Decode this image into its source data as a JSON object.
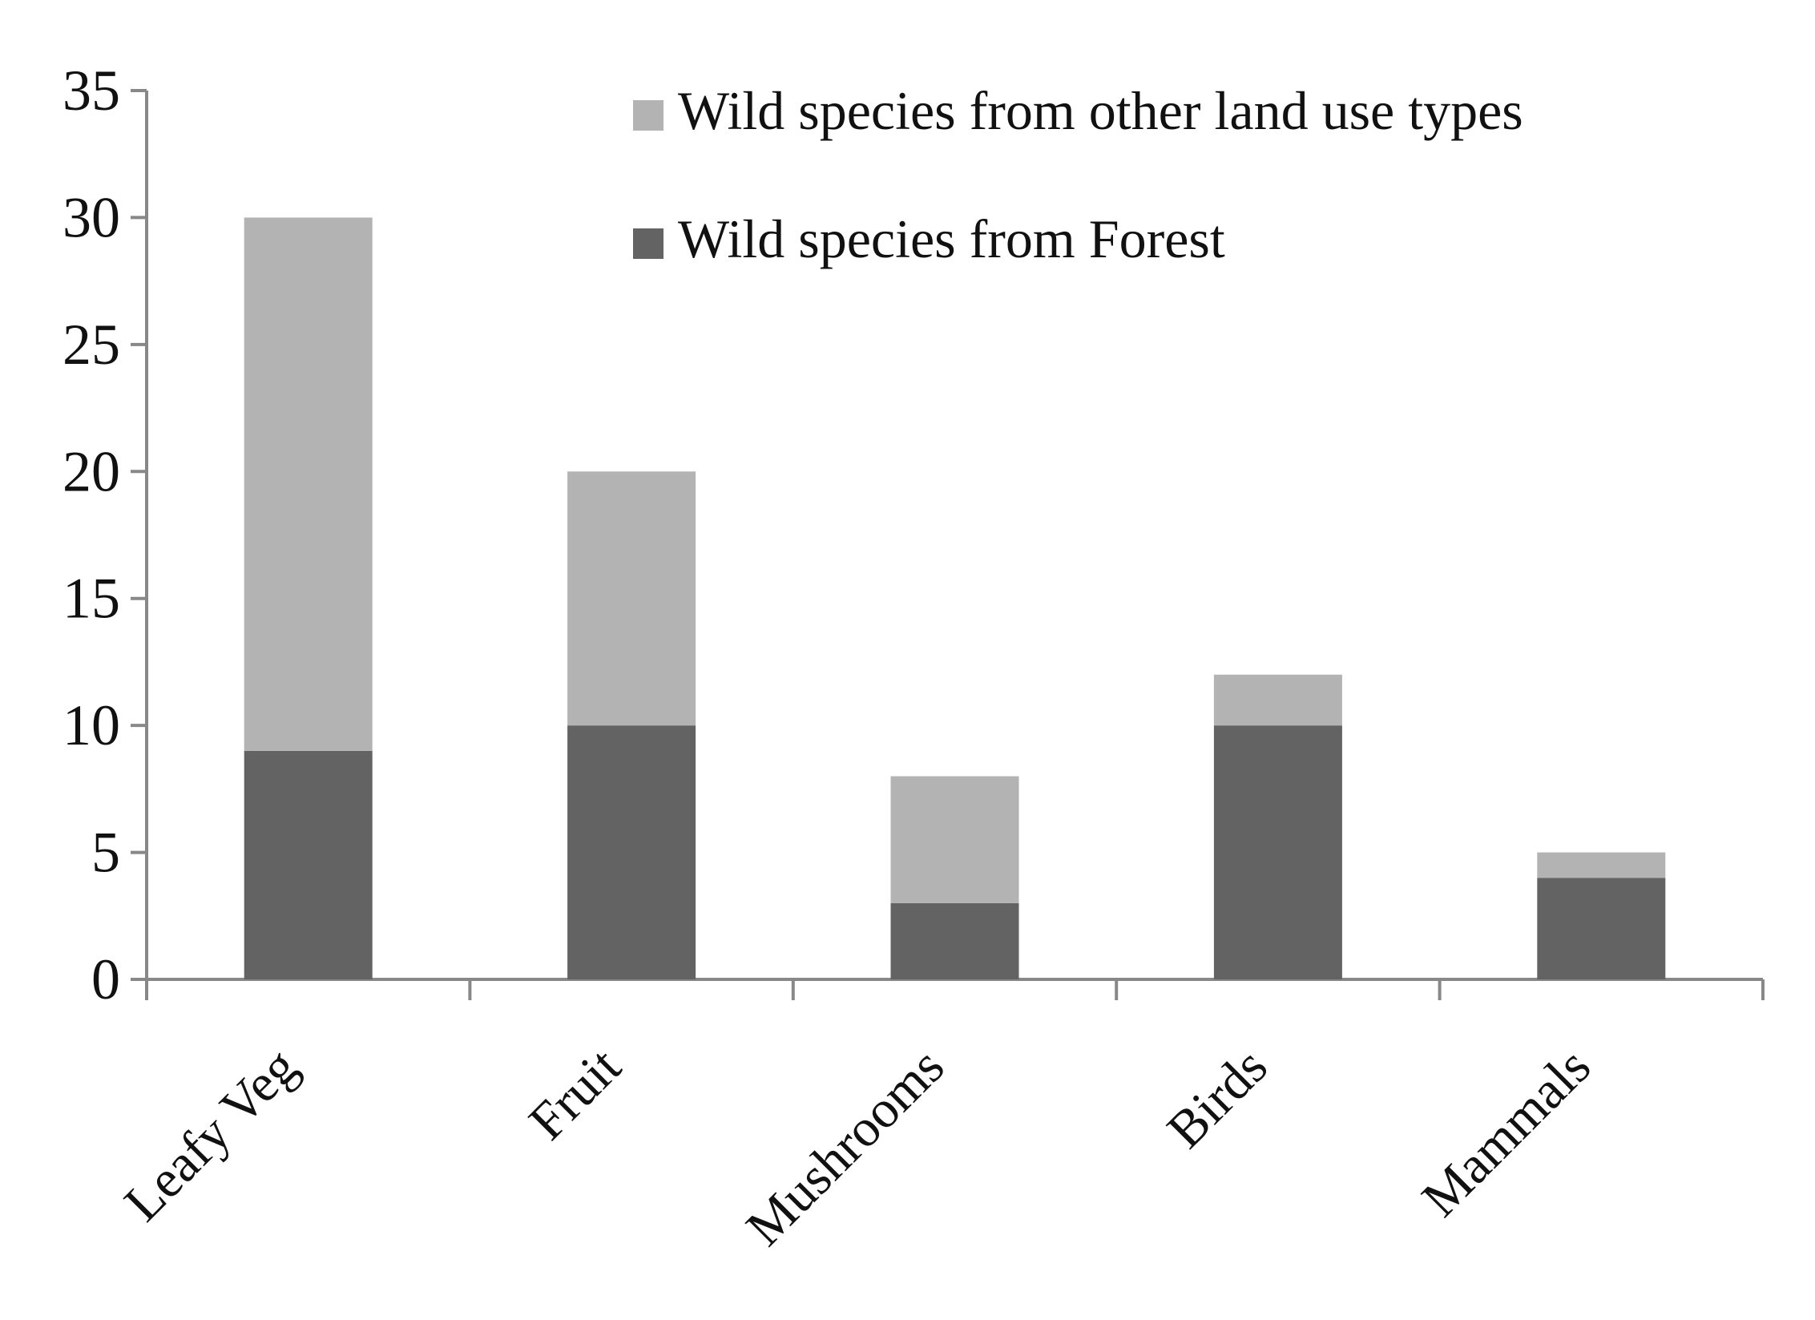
{
  "chart_data": {
    "type": "bar",
    "stacked": true,
    "title": "",
    "xlabel": "",
    "ylabel": "",
    "categories": [
      "Leafy Veg",
      "Fruit",
      "Mushrooms",
      "Birds",
      "Mammals"
    ],
    "series": [
      {
        "name": "Wild species from Forest",
        "values": [
          9,
          10,
          3,
          10,
          4
        ],
        "color": "#636363"
      },
      {
        "name": "Wild species from other land use types",
        "values": [
          21,
          10,
          5,
          2,
          1
        ],
        "color": "#b3b3b3"
      }
    ],
    "ylim": [
      0,
      35
    ],
    "yticks": [
      0,
      5,
      10,
      15,
      20,
      25,
      30,
      35
    ],
    "grid": false,
    "legend": {
      "position": "top-right",
      "order": [
        1,
        0
      ]
    },
    "axis_color": "#888888"
  }
}
